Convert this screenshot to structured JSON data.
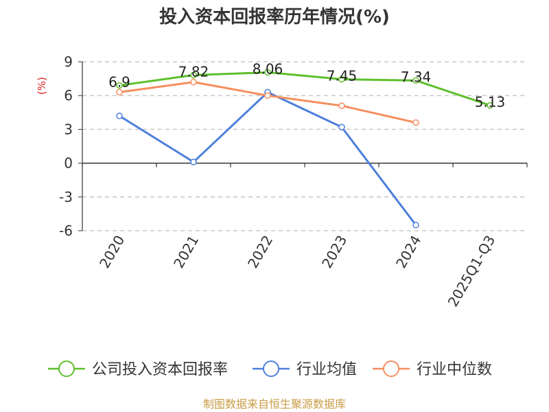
{
  "chart_data": {
    "type": "line",
    "title": "投入资本回报率历年情况(%)",
    "ylabel": "(%)",
    "xlabel": "",
    "categories": [
      "2020",
      "2021",
      "2022",
      "2023",
      "2024",
      "2025Q1-Q3"
    ],
    "ylim": [
      -6,
      9
    ],
    "yticks": [
      9,
      6,
      3,
      0,
      -3,
      -6
    ],
    "grid": true,
    "legend_position": "bottom",
    "series": [
      {
        "name": "公司投入资本回报率",
        "color": "#5cbf2a",
        "values": [
          6.9,
          7.82,
          8.06,
          7.45,
          7.34,
          5.13
        ],
        "labels": [
          "6.9",
          "7.82",
          "8.06",
          "7.45",
          "7.34",
          "5.13"
        ]
      },
      {
        "name": "行业均值",
        "color": "#4d7fdc",
        "values": [
          4.2,
          0.1,
          6.3,
          3.2,
          -5.5,
          null
        ]
      },
      {
        "name": "行业中位数",
        "color": "#f58e5e",
        "values": [
          6.3,
          7.2,
          6.0,
          5.1,
          3.6,
          null
        ]
      }
    ],
    "source": "制图数据来自恒生聚源数据库",
    "source_color": "#c99b45",
    "ylabel_color": "#e02020"
  }
}
